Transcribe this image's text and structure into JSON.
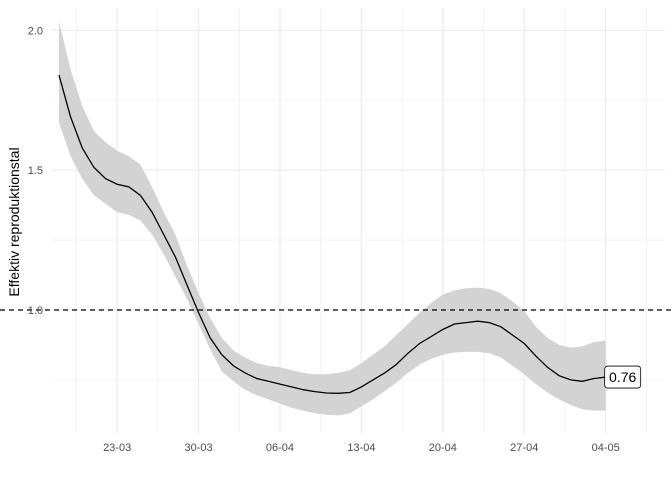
{
  "chart_data": {
    "type": "line",
    "ylabel": "Effektiv reproduktionstal",
    "xlabel": "",
    "title": "",
    "x_tick_labels": [
      "23-03",
      "30-03",
      "06-04",
      "13-04",
      "20-04",
      "27-04",
      "04-05"
    ],
    "x_tick_days": [
      23,
      30,
      37,
      44,
      51,
      58,
      65
    ],
    "y_tick_labels": [
      "1.0",
      "1.5",
      "2.0"
    ],
    "y_ticks": [
      1.0,
      1.5,
      2.0
    ],
    "ylim": [
      0.56,
      2.08
    ],
    "xlim_days": [
      17.4,
      70.1
    ],
    "reference_line": {
      "y": 1.0,
      "style": "dashed"
    },
    "grid": true,
    "end_label": "0.76",
    "colors": {
      "line": "#000000",
      "ribbon": "#d3d3d3",
      "grid": "#ebebeb"
    },
    "series": [
      {
        "x_days": [
          18,
          19,
          20,
          21,
          22,
          23,
          24,
          25,
          26,
          27,
          28,
          29,
          30,
          31,
          32,
          33,
          34,
          35,
          36,
          37,
          38,
          39,
          40,
          41,
          42,
          43,
          44,
          45,
          46,
          47,
          48,
          49,
          50,
          51,
          52,
          53,
          54,
          55,
          56,
          57,
          58,
          59,
          60,
          61,
          62,
          63,
          64,
          65
        ],
        "values": [
          1.84,
          1.69,
          1.58,
          1.51,
          1.47,
          1.45,
          1.44,
          1.41,
          1.35,
          1.27,
          1.19,
          1.09,
          0.99,
          0.9,
          0.84,
          0.8,
          0.775,
          0.755,
          0.745,
          0.735,
          0.725,
          0.715,
          0.708,
          0.703,
          0.702,
          0.705,
          0.725,
          0.75,
          0.775,
          0.805,
          0.845,
          0.88,
          0.905,
          0.93,
          0.95,
          0.955,
          0.96,
          0.955,
          0.94,
          0.91,
          0.88,
          0.835,
          0.795,
          0.765,
          0.75,
          0.745,
          0.755,
          0.76
        ],
        "lower": [
          1.67,
          1.55,
          1.47,
          1.41,
          1.38,
          1.35,
          1.34,
          1.32,
          1.27,
          1.2,
          1.12,
          1.04,
          0.95,
          0.86,
          0.78,
          0.745,
          0.715,
          0.695,
          0.68,
          0.665,
          0.65,
          0.64,
          0.63,
          0.625,
          0.623,
          0.63,
          0.655,
          0.68,
          0.71,
          0.74,
          0.775,
          0.805,
          0.825,
          0.84,
          0.848,
          0.85,
          0.85,
          0.845,
          0.83,
          0.8,
          0.77,
          0.735,
          0.705,
          0.68,
          0.66,
          0.645,
          0.64,
          0.64
        ],
        "upper": [
          2.03,
          1.86,
          1.73,
          1.64,
          1.6,
          1.57,
          1.55,
          1.52,
          1.44,
          1.35,
          1.27,
          1.16,
          1.06,
          0.97,
          0.9,
          0.855,
          0.83,
          0.81,
          0.8,
          0.795,
          0.785,
          0.775,
          0.77,
          0.77,
          0.775,
          0.785,
          0.81,
          0.84,
          0.87,
          0.91,
          0.95,
          0.99,
          1.025,
          1.055,
          1.07,
          1.078,
          1.08,
          1.075,
          1.06,
          1.03,
          0.995,
          0.94,
          0.9,
          0.875,
          0.865,
          0.87,
          0.885,
          0.89
        ]
      }
    ]
  }
}
